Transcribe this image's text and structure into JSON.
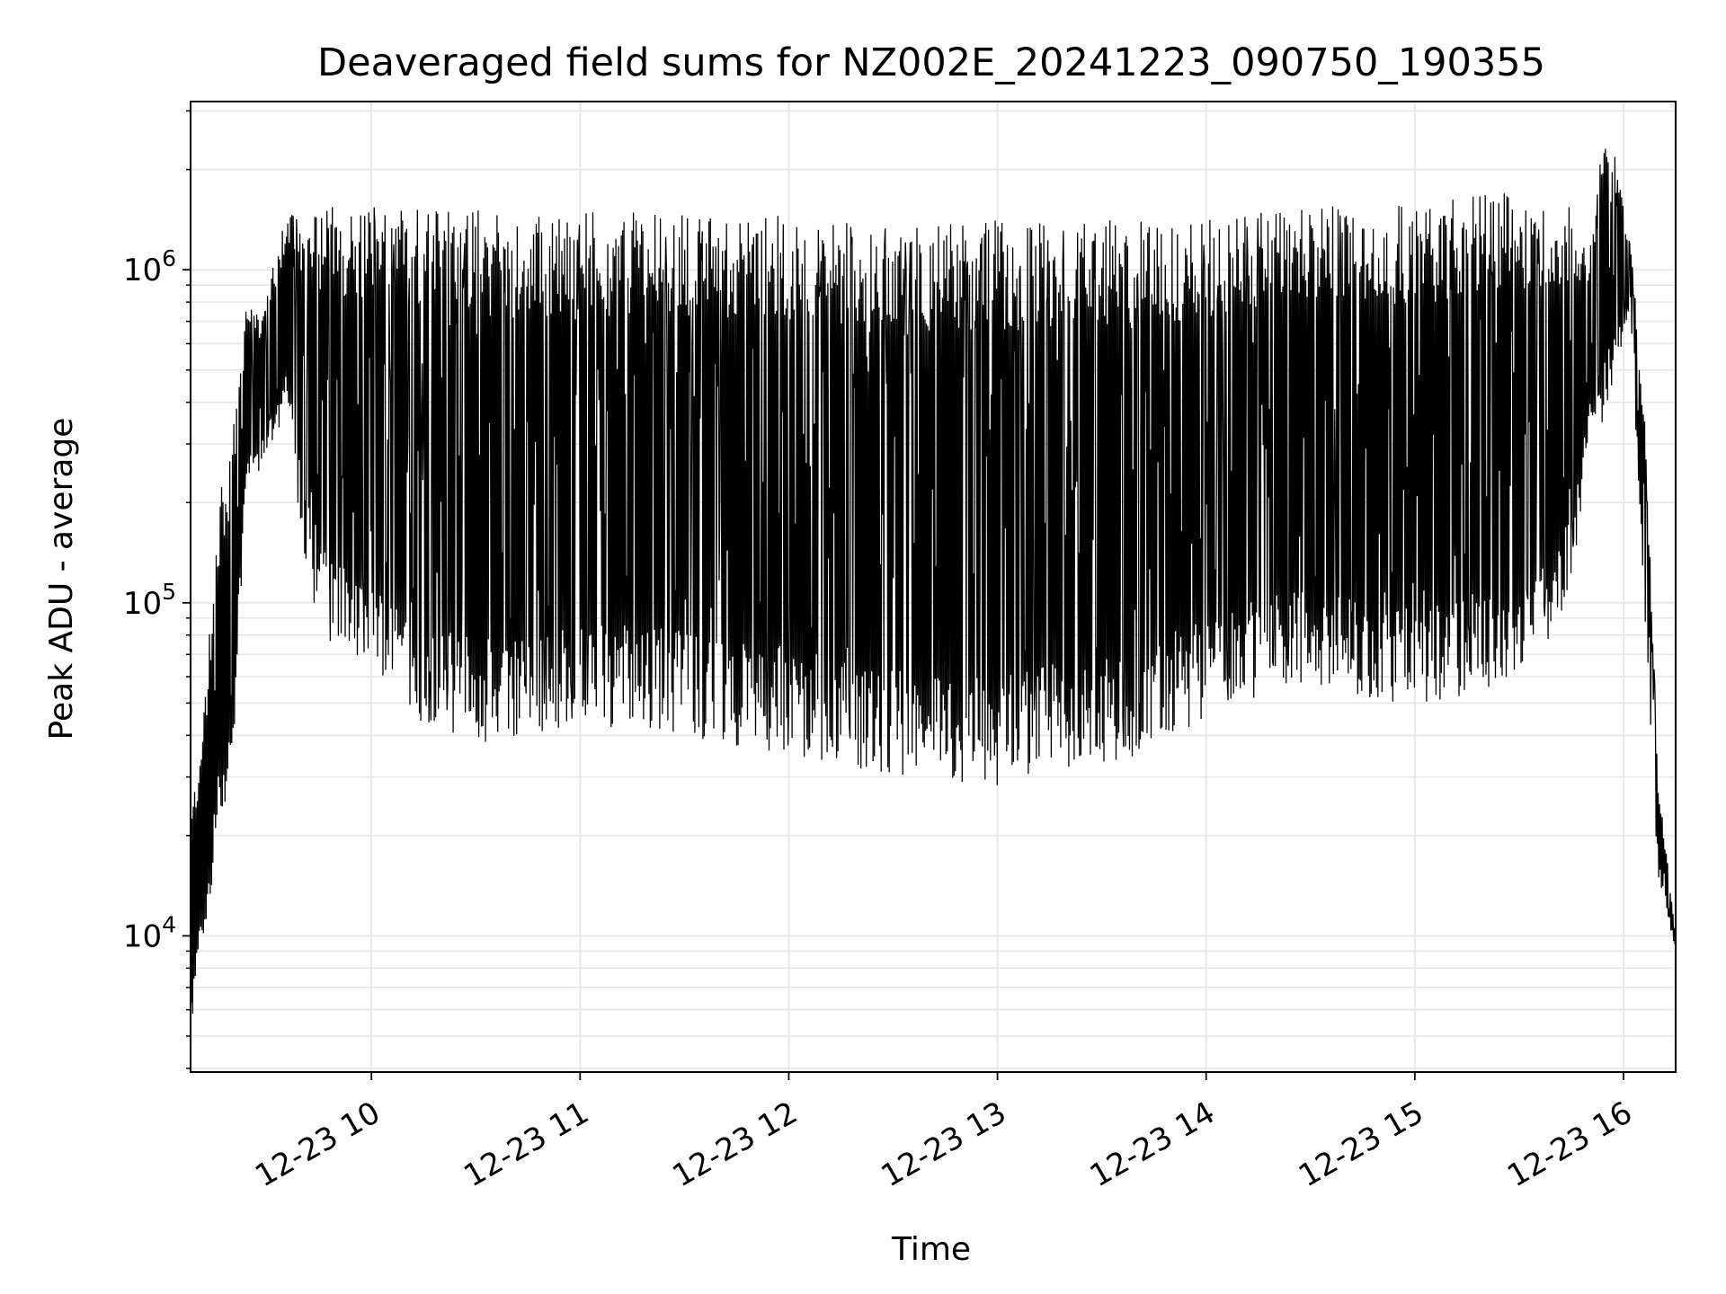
{
  "chart_data": {
    "type": "line",
    "title": "Deaveraged field sums for NZ002E_20241223_090750_190355",
    "xlabel": "Time",
    "ylabel": "Peak ADU - average",
    "x_scale": "time",
    "y_scale": "log",
    "xlim": [
      "2024-12-23 09:08",
      "2024-12-23 16:15"
    ],
    "ylim": [
      3900,
      3200000
    ],
    "grid": true,
    "grid_color": "#e6e6e6",
    "line_color": "#000000",
    "x_ticks": [
      {
        "value": "2024-12-23 10:00",
        "label": "12-23 10"
      },
      {
        "value": "2024-12-23 11:00",
        "label": "12-23 11"
      },
      {
        "value": "2024-12-23 12:00",
        "label": "12-23 12"
      },
      {
        "value": "2024-12-23 13:00",
        "label": "12-23 13"
      },
      {
        "value": "2024-12-23 14:00",
        "label": "12-23 14"
      },
      {
        "value": "2024-12-23 15:00",
        "label": "12-23 15"
      },
      {
        "value": "2024-12-23 16:00",
        "label": "12-23 16"
      }
    ],
    "y_ticks": [
      {
        "value": 10000,
        "base": "10",
        "exp": "4"
      },
      {
        "value": 100000,
        "base": "10",
        "exp": "5"
      },
      {
        "value": 1000000,
        "base": "10",
        "exp": "6"
      }
    ],
    "envelope": {
      "description_note": "",
      "x": [
        "2024-12-23 09:08",
        "2024-12-23 09:12",
        "2024-12-23 09:16",
        "2024-12-23 09:20",
        "2024-12-23 09:24",
        "2024-12-23 09:28",
        "2024-12-23 09:32",
        "2024-12-23 09:36",
        "2024-12-23 09:40",
        "2024-12-23 09:44",
        "2024-12-23 09:48",
        "2024-12-23 09:52",
        "2024-12-23 09:56",
        "2024-12-23 10:00",
        "2024-12-23 10:06",
        "2024-12-23 10:12",
        "2024-12-23 10:18",
        "2024-12-23 10:24",
        "2024-12-23 10:30",
        "2024-12-23 10:36",
        "2024-12-23 10:42",
        "2024-12-23 10:48",
        "2024-12-23 10:54",
        "2024-12-23 11:00",
        "2024-12-23 11:10",
        "2024-12-23 11:20",
        "2024-12-23 11:30",
        "2024-12-23 11:40",
        "2024-12-23 11:50",
        "2024-12-23 12:00",
        "2024-12-23 12:10",
        "2024-12-23 12:20",
        "2024-12-23 12:30",
        "2024-12-23 12:40",
        "2024-12-23 12:50",
        "2024-12-23 13:00",
        "2024-12-23 13:10",
        "2024-12-23 13:20",
        "2024-12-23 13:30",
        "2024-12-23 13:40",
        "2024-12-23 13:50",
        "2024-12-23 14:00",
        "2024-12-23 14:10",
        "2024-12-23 14:20",
        "2024-12-23 14:30",
        "2024-12-23 14:40",
        "2024-12-23 14:50",
        "2024-12-23 15:00",
        "2024-12-23 15:10",
        "2024-12-23 15:20",
        "2024-12-23 15:30",
        "2024-12-23 15:40",
        "2024-12-23 15:46",
        "2024-12-23 15:50",
        "2024-12-23 15:54",
        "2024-12-23 15:58",
        "2024-12-23 16:02",
        "2024-12-23 16:06",
        "2024-12-23 16:10",
        "2024-12-23 16:15"
      ],
      "high": [
        23000,
        50000,
        200000,
        320000,
        900000,
        700000,
        1100000,
        1500000,
        1400000,
        1500000,
        1600000,
        1500000,
        1550000,
        1550000,
        1550000,
        1580000,
        1600000,
        1550000,
        1560000,
        1520000,
        1500000,
        1480000,
        1450000,
        1500000,
        1480000,
        1520000,
        1480000,
        1450000,
        1450000,
        1470000,
        1450000,
        1380000,
        1400000,
        1350000,
        1420000,
        1450000,
        1380000,
        1420000,
        1450000,
        1400000,
        1380000,
        1450000,
        1450000,
        1550000,
        1600000,
        1600000,
        1580000,
        1550000,
        1620000,
        1750000,
        1700000,
        1600000,
        1550000,
        1100000,
        2400000,
        2200000,
        1200000,
        400000,
        30000,
        10000
      ],
      "low": [
        5000,
        10000,
        20000,
        30000,
        220000,
        250000,
        300000,
        380000,
        150000,
        90000,
        75000,
        80000,
        65000,
        60000,
        50000,
        45000,
        42000,
        40000,
        38000,
        35000,
        38000,
        40000,
        42000,
        45000,
        42000,
        42000,
        40000,
        38000,
        36000,
        35000,
        33000,
        30000,
        30000,
        28000,
        27000,
        28000,
        30000,
        32000,
        33000,
        34000,
        38000,
        45000,
        50000,
        55000,
        55000,
        55000,
        50000,
        50000,
        50000,
        55000,
        60000,
        80000,
        120000,
        300000,
        350000,
        500000,
        800000,
        80000,
        15000,
        9000
      ]
    }
  }
}
